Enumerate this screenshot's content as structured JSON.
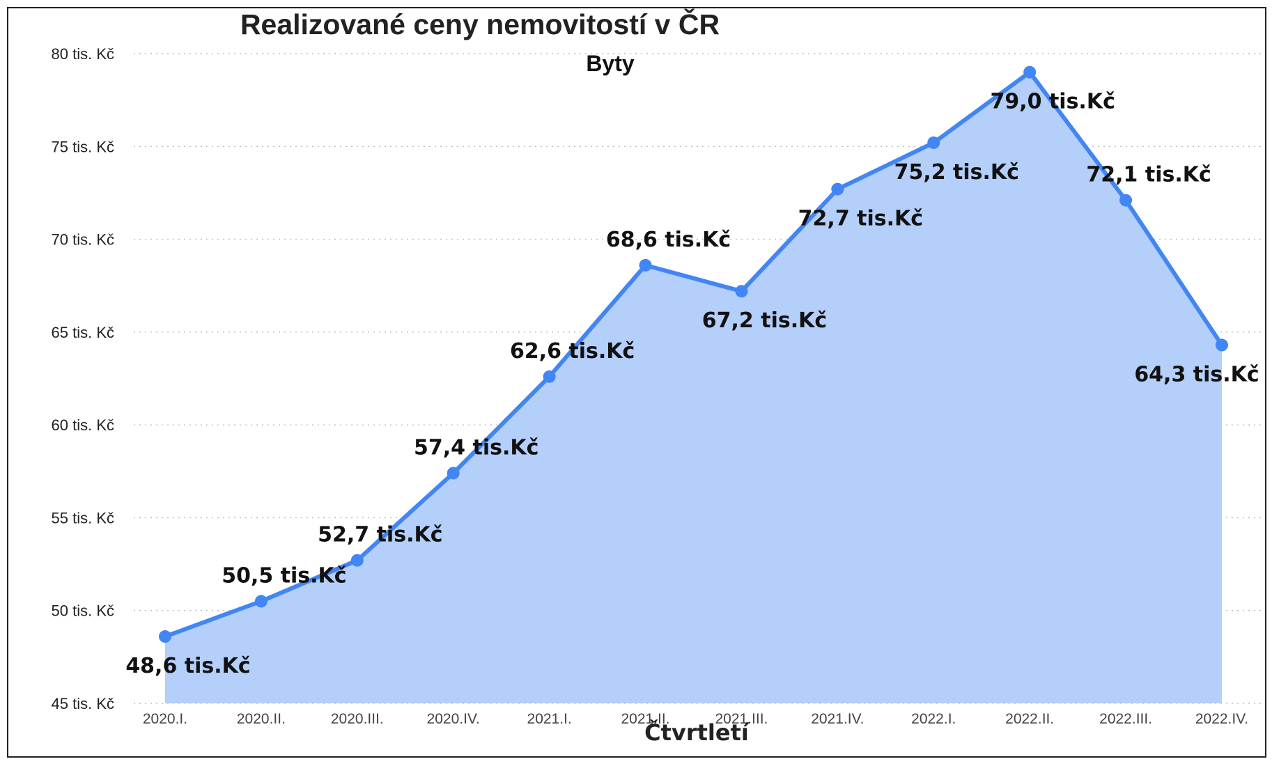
{
  "chart_data": {
    "type": "area",
    "title": "Realizované ceny nemovitostí v ČR",
    "subtitle": "Byty",
    "xlabel": "Čtvrtletí",
    "ylabel": "",
    "categories": [
      "2020.I.",
      "2020.II.",
      "2020.III.",
      "2020.IV.",
      "2021.I.",
      "2021.II.",
      "2021.III.",
      "2021.IV.",
      "2022.I.",
      "2022.II.",
      "2022.III.",
      "2022.IV."
    ],
    "values": [
      48.6,
      50.5,
      52.7,
      57.4,
      62.6,
      68.6,
      67.2,
      72.7,
      75.2,
      79.0,
      72.1,
      64.3
    ],
    "data_labels": [
      "48,6 tis.Kč",
      "50,5 tis.Kč",
      "52,7 tis.Kč",
      "57,4 tis.Kč",
      "62,6 tis.Kč",
      "68,6 tis.Kč",
      "67,2 tis.Kč",
      "72,7 tis.Kč",
      "75,2 tis.Kč",
      "79,0 tis.Kč",
      "72,1 tis.Kč",
      "64,3 tis.Kč"
    ],
    "label_positions": [
      "below",
      "above",
      "above",
      "above",
      "above",
      "above",
      "below",
      "below",
      "below",
      "below",
      "above",
      "below"
    ],
    "y_ticks": [
      45,
      50,
      55,
      60,
      65,
      70,
      75,
      80
    ],
    "y_tick_labels": [
      "45 tis. Kč",
      "50 tis. Kč",
      "55 tis. Kč",
      "60 tis. Kč",
      "65 tis. Kč",
      "70 tis. Kč",
      "75 tis. Kč",
      "80 tis. Kč"
    ],
    "ylim": [
      45,
      80
    ],
    "grid": true,
    "legend": "none",
    "colors": {
      "line": "#4285f4",
      "fill": "#b3cffa",
      "marker": "#4285f4"
    }
  }
}
